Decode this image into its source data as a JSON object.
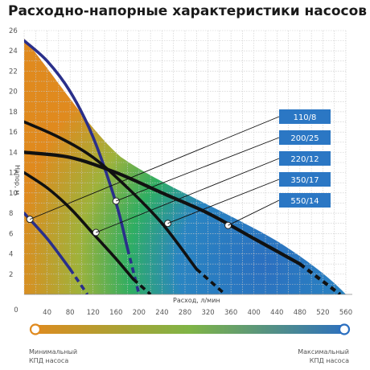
{
  "chart_data": {
    "type": "line",
    "title": "Расходно-напорные характеристики насосов",
    "xlabel": "Расход, л/мин",
    "ylabel": "Напор, м",
    "xlim": [
      0,
      560
    ],
    "ylim": [
      0,
      26
    ],
    "x_ticks": [
      "40",
      "80",
      "120",
      "160",
      "200",
      "240",
      "280",
      "320",
      "360",
      "400",
      "440",
      "480",
      "520",
      "560"
    ],
    "y_ticks": [
      "2",
      "4",
      "6",
      "8",
      "10",
      "12",
      "14",
      "16",
      "18",
      "20",
      "22",
      "24",
      "26"
    ],
    "x_zero_label": "0",
    "grid": true,
    "colors": {
      "low_efficiency": "#e08a1e",
      "mid_efficiency": "#2fae62",
      "high_efficiency": "#2b6fc0",
      "curve": "#111111",
      "curve_blue": "#2a2f8a",
      "label_box": "#2b77c4"
    },
    "series": [
      {
        "name": "110/8",
        "color": "#2a2f8a",
        "x": [
          0,
          40,
          80,
          110
        ],
        "y": [
          8,
          5.5,
          2.5,
          0
        ]
      },
      {
        "name": "200/25",
        "color": "#2a2f8a",
        "x": [
          0,
          40,
          80,
          120,
          160,
          180,
          200
        ],
        "y": [
          25,
          23,
          20,
          15.5,
          9,
          4.5,
          0
        ]
      },
      {
        "name": "220/12",
        "color": "#111111",
        "x": [
          0,
          40,
          80,
          120,
          160,
          190,
          220
        ],
        "y": [
          12,
          10.5,
          8.5,
          6,
          3.5,
          1.5,
          0
        ]
      },
      {
        "name": "350/17",
        "color": "#111111",
        "x": [
          0,
          60,
          120,
          180,
          240,
          300,
          350
        ],
        "y": [
          17,
          15.5,
          13.5,
          10.5,
          7,
          2.5,
          0
        ]
      },
      {
        "name": "550/14",
        "color": "#111111",
        "x": [
          0,
          80,
          160,
          240,
          320,
          400,
          480,
          550
        ],
        "y": [
          14,
          13.5,
          12,
          10,
          8,
          5.5,
          3,
          0
        ]
      }
    ],
    "points": [
      {
        "series": "110/8",
        "x": 10,
        "y": 7.4
      },
      {
        "series": "200/25",
        "x": 160,
        "y": 9.2
      },
      {
        "series": "220/12",
        "x": 125,
        "y": 6.1
      },
      {
        "series": "350/17",
        "x": 250,
        "y": 7
      },
      {
        "series": "550/14",
        "x": 355,
        "y": 6.8
      }
    ],
    "labels": [
      "110/8",
      "200/25",
      "220/12",
      "350/17",
      "550/14"
    ],
    "legend": {
      "left": "Минимальный КПД насоса",
      "right": "Максимальный КПД насоса"
    }
  }
}
